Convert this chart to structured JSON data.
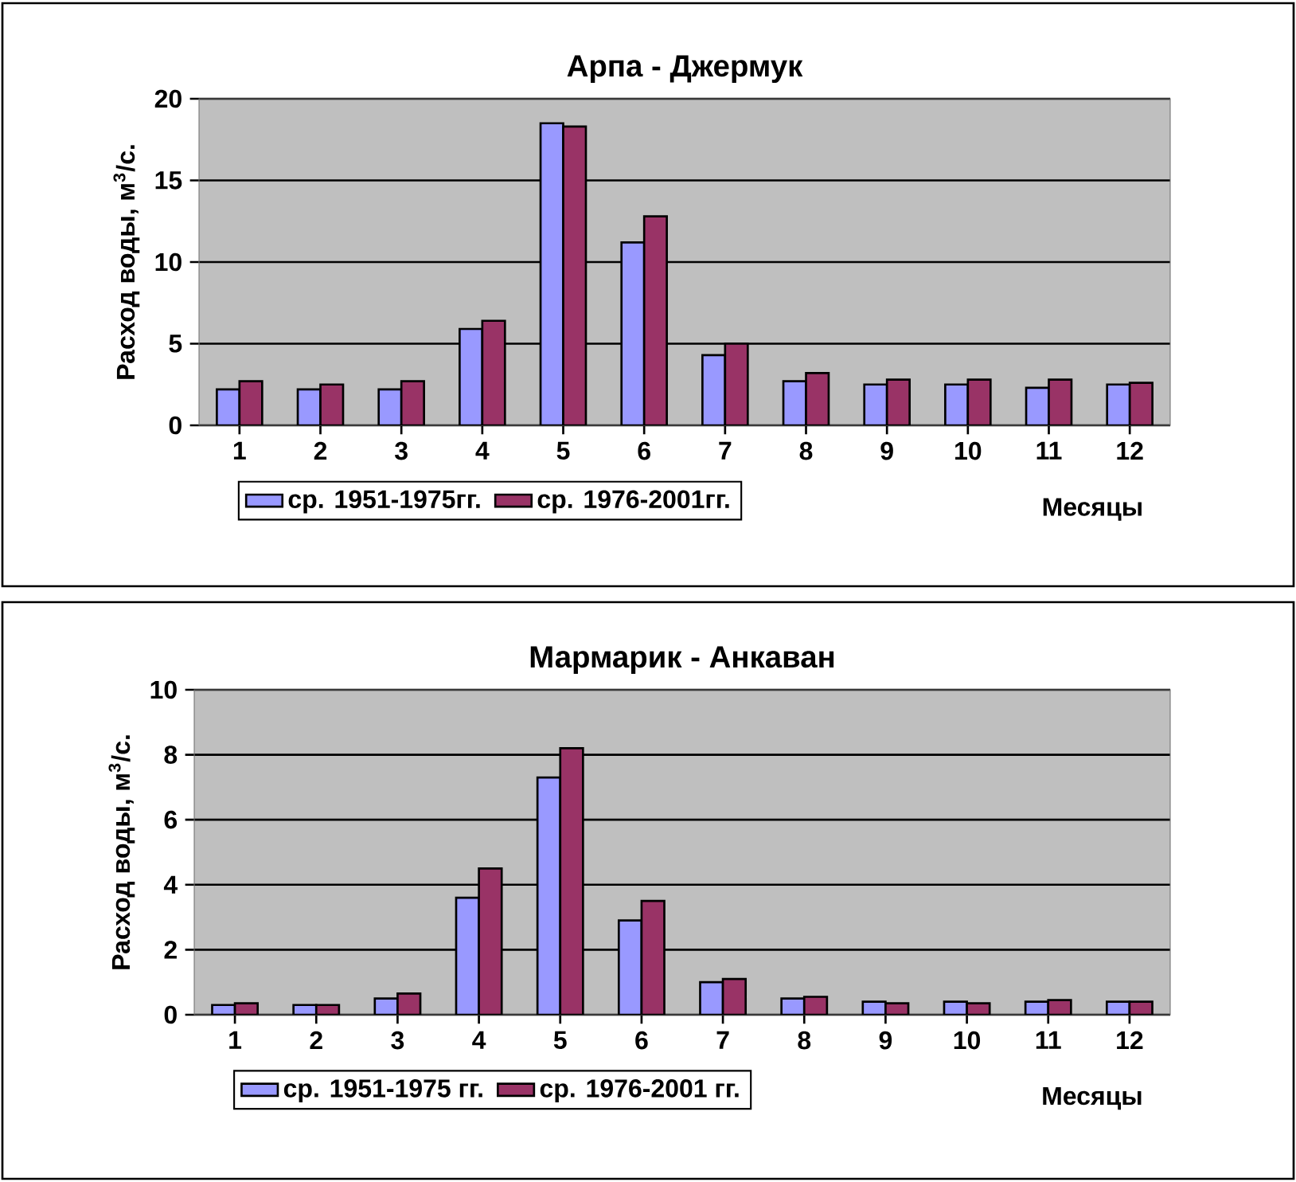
{
  "chart_data": [
    {
      "type": "bar",
      "title": "Арпа - Джермук",
      "xlabel": "Месяцы",
      "ylabel": "Расход воды, м$^{3}$/с.",
      "categories": [
        "1",
        "2",
        "3",
        "4",
        "5",
        "6",
        "7",
        "8",
        "9",
        "10",
        "11",
        "12"
      ],
      "series": [
        {
          "name": "ср. 1951-1975гг.",
          "color": "#9999ff",
          "values": [
            2.2,
            2.2,
            2.2,
            5.9,
            18.5,
            11.2,
            4.3,
            2.7,
            2.5,
            2.5,
            2.3,
            2.5
          ]
        },
        {
          "name": "ср. 1976-2001гг.",
          "color": "#993366",
          "values": [
            2.7,
            2.5,
            2.7,
            6.4,
            18.3,
            12.8,
            5.0,
            3.2,
            2.8,
            2.8,
            2.8,
            2.6
          ]
        }
      ],
      "ylim": [
        0,
        20
      ],
      "yticks": [
        0,
        5,
        10,
        15,
        20
      ],
      "grid": "y",
      "legend": "bottom left"
    },
    {
      "type": "bar",
      "title": "Мармарик - Анкаван",
      "xlabel": "Месяцы",
      "ylabel": "Расход воды, м$^{3}$/с.",
      "categories": [
        "1",
        "2",
        "3",
        "4",
        "5",
        "6",
        "7",
        "8",
        "9",
        "10",
        "11",
        "12"
      ],
      "series": [
        {
          "name": "ср. 1951-1975 гг.",
          "color": "#9999ff",
          "values": [
            0.3,
            0.3,
            0.5,
            3.6,
            7.3,
            2.9,
            1.0,
            0.5,
            0.4,
            0.4,
            0.4,
            0.4
          ]
        },
        {
          "name": "ср. 1976-2001 гг.",
          "color": "#993366",
          "values": [
            0.35,
            0.3,
            0.65,
            4.5,
            8.2,
            3.5,
            1.1,
            0.55,
            0.35,
            0.35,
            0.45,
            0.4
          ]
        }
      ],
      "ylim": [
        0,
        10
      ],
      "yticks": [
        0,
        2,
        4,
        6,
        8,
        10
      ],
      "grid": "y",
      "legend": "bottom left"
    }
  ]
}
